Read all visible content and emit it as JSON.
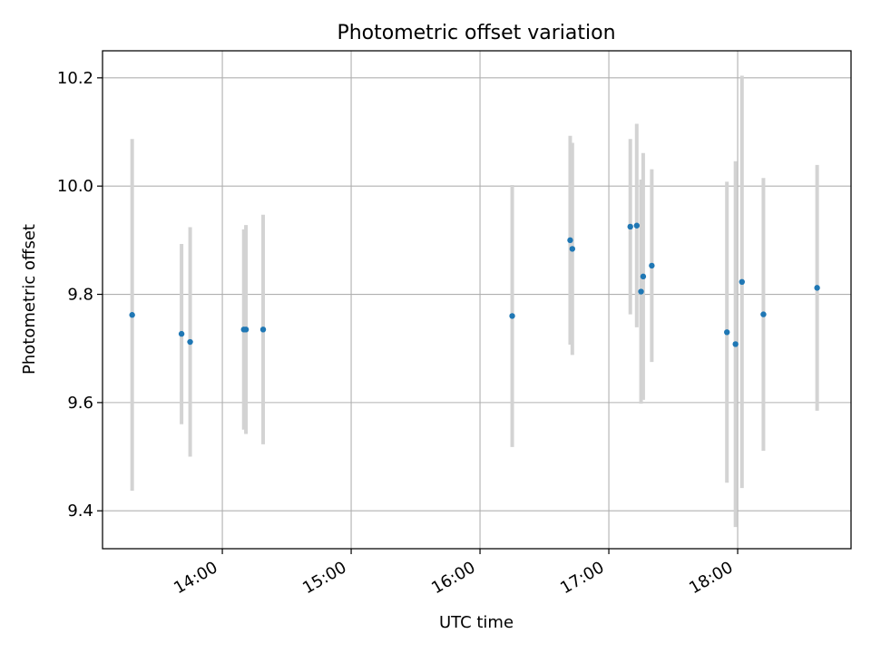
{
  "chart_data": {
    "type": "scatter",
    "title": "Photometric offset variation",
    "xlabel": "UTC time",
    "ylabel": "Photometric offset",
    "x_ticks": [
      "14:00",
      "15:00",
      "16:00",
      "17:00",
      "18:00"
    ],
    "x_ticks_hours": [
      14,
      15,
      16,
      17,
      18
    ],
    "xlim_hours": [
      13.07,
      18.88
    ],
    "y_ticks": [
      "9.4",
      "9.6",
      "9.8",
      "10.0",
      "10.2"
    ],
    "y_ticks_values": [
      9.4,
      9.6,
      9.8,
      10.0,
      10.2
    ],
    "ylim": [
      9.33,
      10.25
    ],
    "grid": true,
    "colors": {
      "point": "#1f77b4",
      "errorbar": "#d3d3d3",
      "grid": "#b0b0b0"
    },
    "points": [
      {
        "time": "13:18",
        "value": 9.762,
        "err_low": 9.437,
        "err_high": 10.087
      },
      {
        "time": "13:41",
        "value": 9.727,
        "err_low": 9.56,
        "err_high": 9.893
      },
      {
        "time": "13:45",
        "value": 9.712,
        "err_low": 9.5,
        "err_high": 9.924
      },
      {
        "time": "14:10",
        "value": 9.735,
        "err_low": 9.55,
        "err_high": 9.92
      },
      {
        "time": "14:11",
        "value": 9.735,
        "err_low": 9.542,
        "err_high": 9.928
      },
      {
        "time": "14:19",
        "value": 9.735,
        "err_low": 9.523,
        "err_high": 9.947
      },
      {
        "time": "16:15",
        "value": 9.76,
        "err_low": 9.518,
        "err_high": 10.002
      },
      {
        "time": "16:42",
        "value": 9.9,
        "err_low": 9.707,
        "err_high": 10.093
      },
      {
        "time": "16:43",
        "value": 9.884,
        "err_low": 9.688,
        "err_high": 10.08
      },
      {
        "time": "17:10",
        "value": 9.925,
        "err_low": 9.763,
        "err_high": 10.087
      },
      {
        "time": "17:13",
        "value": 9.927,
        "err_low": 9.739,
        "err_high": 10.115
      },
      {
        "time": "17:15",
        "value": 9.805,
        "err_low": 9.598,
        "err_high": 10.012
      },
      {
        "time": "17:16",
        "value": 9.833,
        "err_low": 9.605,
        "err_high": 10.061
      },
      {
        "time": "17:20",
        "value": 9.853,
        "err_low": 9.675,
        "err_high": 10.031
      },
      {
        "time": "17:55",
        "value": 9.73,
        "err_low": 9.452,
        "err_high": 10.008
      },
      {
        "time": "17:59",
        "value": 9.708,
        "err_low": 9.37,
        "err_high": 10.046
      },
      {
        "time": "18:02",
        "value": 9.823,
        "err_low": 9.442,
        "err_high": 10.204
      },
      {
        "time": "18:12",
        "value": 9.763,
        "err_low": 9.511,
        "err_high": 10.015
      },
      {
        "time": "18:37",
        "value": 9.812,
        "err_low": 9.585,
        "err_high": 10.039
      }
    ]
  }
}
